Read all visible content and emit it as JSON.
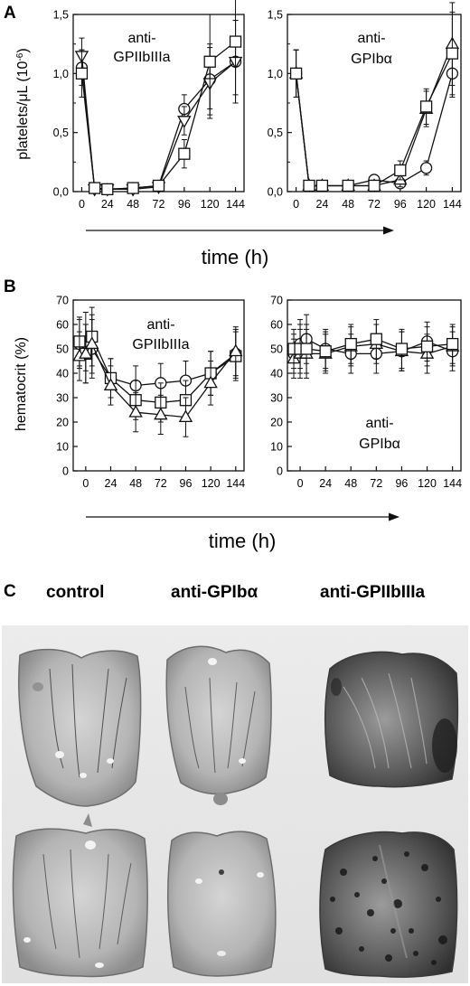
{
  "panel_labels": {
    "a": "A",
    "b": "B",
    "c": "C"
  },
  "chart_data": [
    {
      "type": "line",
      "panel": "A",
      "annotation": [
        "anti-",
        "GPIIbIIIa"
      ],
      "ylabel": "platelets/μL (10",
      "ylabel_sup": "-6",
      "ylabel_close": ")",
      "ylim": [
        0,
        1.5
      ],
      "yticks": [
        "0,0",
        "0,5",
        "1,0",
        "1,5"
      ],
      "yticks_minor_step": 0.25,
      "x": [
        0,
        12,
        24,
        48,
        72,
        96,
        120,
        144
      ],
      "xticks": [
        "0",
        "24",
        "48",
        "72",
        "96",
        "120",
        "144"
      ],
      "xtick_values": [
        0,
        24,
        48,
        72,
        96,
        120,
        144
      ],
      "series": [
        {
          "marker": "circle",
          "values": [
            1.05,
            0.03,
            0.02,
            0.03,
            0.05,
            0.7,
            0.95,
            1.1
          ],
          "err": [
            0.15,
            0.02,
            0.02,
            0.02,
            0.04,
            0.12,
            0.3,
            0.35
          ]
        },
        {
          "marker": "triangle-down",
          "values": [
            1.15,
            0.02,
            0.02,
            0.02,
            0.04,
            0.6,
            0.92,
            1.1
          ],
          "err": [
            0.15,
            0.02,
            0.02,
            0.02,
            0.04,
            0.12,
            0.3,
            0.35
          ]
        },
        {
          "marker": "square",
          "values": [
            1.0,
            0.03,
            0.02,
            0.03,
            0.05,
            0.32,
            1.1,
            1.27
          ],
          "err": [
            0.2,
            0.02,
            0.02,
            0.02,
            0.04,
            0.12,
            0.4,
            0.45
          ]
        }
      ]
    },
    {
      "type": "line",
      "panel": "A",
      "annotation": [
        "anti-",
        "GPIbα"
      ],
      "ylim": [
        0,
        1.5
      ],
      "yticks": [
        "0,0",
        "0,5",
        "1,0",
        "1,5"
      ],
      "yticks_minor_step": 0.25,
      "x": [
        0,
        12,
        24,
        48,
        72,
        96,
        120,
        144
      ],
      "xticks": [
        "0",
        "24",
        "48",
        "72",
        "96",
        "120",
        "144"
      ],
      "xtick_values": [
        0,
        24,
        48,
        72,
        96,
        120,
        144
      ],
      "series": [
        {
          "marker": "circle",
          "values": [
            1.0,
            0.05,
            0.05,
            0.05,
            0.1,
            0.07,
            0.2,
            1.0
          ],
          "err": [
            0.2,
            0.03,
            0.03,
            0.03,
            0.04,
            0.04,
            0.06,
            0.2
          ]
        },
        {
          "marker": "triangle-up",
          "values": [
            1.0,
            0.05,
            0.05,
            0.05,
            0.05,
            0.1,
            0.7,
            1.25
          ],
          "err": [
            0.2,
            0.03,
            0.03,
            0.03,
            0.04,
            0.06,
            0.15,
            0.35
          ]
        },
        {
          "marker": "square",
          "values": [
            1.0,
            0.05,
            0.05,
            0.05,
            0.05,
            0.18,
            0.72,
            1.17
          ],
          "err": [
            0.2,
            0.03,
            0.03,
            0.03,
            0.04,
            0.08,
            0.15,
            0.35
          ]
        }
      ]
    },
    {
      "type": "line",
      "panel": "B",
      "annotation": [
        "anti-",
        "GPIIbIIIa"
      ],
      "ylabel": "hematocrit (%)",
      "ylim": [
        0,
        70
      ],
      "yticks": [
        "0",
        "10",
        "20",
        "30",
        "40",
        "50",
        "60",
        "70"
      ],
      "x": [
        -6,
        0,
        6,
        24,
        48,
        72,
        96,
        120,
        144
      ],
      "xticks": [
        "0",
        "24",
        "48",
        "72",
        "96",
        "120",
        "144"
      ],
      "xtick_values": [
        0,
        24,
        48,
        72,
        96,
        120,
        144
      ],
      "series": [
        {
          "marker": "circle",
          "values": [
            52,
            53,
            50,
            38,
            35,
            36,
            37,
            40,
            48
          ],
          "err": [
            10,
            12,
            12,
            8,
            8,
            8,
            8,
            9,
            10
          ]
        },
        {
          "marker": "square",
          "values": [
            53,
            48,
            55,
            38,
            29,
            28,
            29,
            40,
            47
          ],
          "err": [
            10,
            12,
            12,
            8,
            8,
            8,
            8,
            9,
            10
          ]
        },
        {
          "marker": "triangle-up",
          "values": [
            47,
            48,
            52,
            35,
            24,
            23,
            22,
            36,
            49
          ],
          "err": [
            10,
            12,
            12,
            8,
            8,
            8,
            8,
            9,
            10
          ]
        }
      ]
    },
    {
      "type": "line",
      "panel": "B",
      "annotation": [
        "anti-",
        "GPIbα"
      ],
      "ylim": [
        0,
        70
      ],
      "yticks": [
        "0",
        "10",
        "20",
        "30",
        "40",
        "50",
        "60",
        "70"
      ],
      "x": [
        -6,
        0,
        6,
        24,
        48,
        72,
        96,
        120,
        144
      ],
      "xticks": [
        "0",
        "24",
        "48",
        "72",
        "96",
        "120",
        "144"
      ],
      "xtick_values": [
        0,
        24,
        48,
        72,
        96,
        120,
        144
      ],
      "series": [
        {
          "marker": "circle",
          "values": [
            48,
            52,
            54,
            50,
            48,
            48,
            49,
            53,
            49
          ],
          "err": [
            8,
            10,
            10,
            8,
            8,
            8,
            8,
            8,
            8
          ]
        },
        {
          "marker": "triangle-up",
          "values": [
            46,
            48,
            48,
            48,
            51,
            52,
            49,
            48,
            51
          ],
          "err": [
            8,
            10,
            10,
            8,
            8,
            8,
            8,
            8,
            8
          ]
        },
        {
          "marker": "square",
          "values": [
            50,
            50,
            50,
            49,
            52,
            54,
            50,
            51,
            52
          ],
          "err": [
            8,
            10,
            10,
            8,
            8,
            8,
            8,
            8,
            8
          ]
        }
      ]
    }
  ],
  "axis_label_A": "time (h)",
  "axis_label_B": "time (h)",
  "photo_labels": [
    "control",
    "anti-GPIbα",
    "anti-GPIIbIIIa"
  ]
}
